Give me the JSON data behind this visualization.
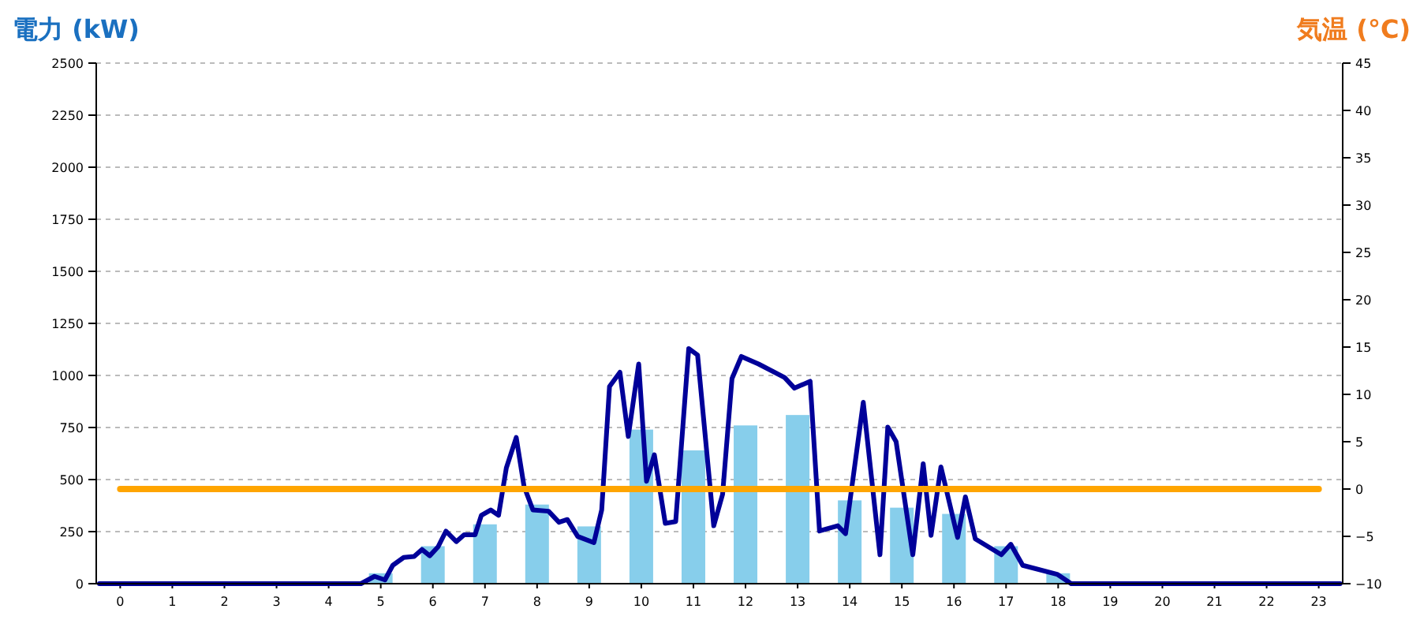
{
  "chart_data": {
    "type": "bar",
    "ylabel": "電力 (kW)",
    "y2label": "気温 (°C)",
    "x": [
      0,
      1,
      2,
      3,
      4,
      5,
      6,
      7,
      8,
      9,
      10,
      11,
      12,
      13,
      14,
      15,
      16,
      17,
      18,
      19,
      20,
      21,
      22,
      23
    ],
    "xlim": [
      -0.46,
      23.46
    ],
    "xticks": [
      0,
      1,
      2,
      3,
      4,
      5,
      6,
      7,
      8,
      9,
      10,
      11,
      12,
      13,
      14,
      15,
      16,
      17,
      18,
      19,
      20,
      21,
      22,
      23
    ],
    "series": [
      {
        "color": "#87ceeb",
        "values": [
          0,
          0,
          0,
          0,
          0,
          50,
          180,
          285,
          380,
          275,
          740,
          640,
          760,
          810,
          400,
          365,
          335,
          180,
          50,
          0,
          0,
          0,
          0,
          0
        ]
      },
      {
        "type": "line",
        "color": "#000099",
        "x": [
          -0.4,
          4.62,
          4.88,
          5.08,
          5.23,
          5.44,
          5.64,
          5.79,
          5.94,
          6.1,
          6.25,
          6.45,
          6.6,
          6.81,
          6.93,
          7.11,
          7.26,
          7.41,
          7.6,
          7.75,
          7.92,
          8.22,
          8.42,
          8.58,
          8.78,
          9.09,
          9.24,
          9.39,
          9.59,
          9.75,
          9.95,
          10.1,
          10.25,
          10.46,
          10.66,
          10.91,
          11.08,
          11.39,
          11.56,
          11.74,
          11.92,
          12.25,
          12.75,
          12.94,
          13.24,
          13.42,
          13.77,
          13.92,
          14.26,
          14.58,
          14.73,
          14.89,
          15.21,
          15.41,
          15.56,
          15.75,
          16.07,
          16.22,
          16.41,
          16.91,
          17.09,
          17.32,
          17.98,
          18.25,
          23.41
        ],
        "values": [
          0,
          0,
          35,
          18,
          88,
          126,
          131,
          164,
          134,
          177,
          252,
          202,
          235,
          235,
          328,
          354,
          328,
          556,
          702,
          467,
          354,
          348,
          295,
          308,
          227,
          197,
          354,
          947,
          1015,
          707,
          1055,
          492,
          619,
          290,
          298,
          1129,
          1098,
          278,
          429,
          985,
          1091,
          1055,
          990,
          939,
          972,
          253,
          278,
          240,
          871,
          139,
          752,
          682,
          139,
          576,
          232,
          561,
          222,
          417,
          215,
          139,
          189,
          88,
          45,
          0,
          0
        ]
      },
      {
        "type": "line",
        "color": "#ffa500",
        "axis": "y2",
        "values": [
          0,
          0,
          0,
          0,
          0,
          0,
          0,
          0,
          0,
          0,
          0,
          0,
          0,
          0,
          0,
          0,
          0,
          0,
          0,
          0,
          0,
          0,
          0,
          0
        ]
      }
    ],
    "ylim": [
      0,
      2500
    ],
    "yticks": [
      0,
      250,
      500,
      750,
      1000,
      1250,
      1500,
      1750,
      2000,
      2250,
      2500
    ],
    "y2lim": [
      -10,
      45
    ],
    "y2ticks": [
      -10,
      -5,
      0,
      5,
      10,
      15,
      20,
      25,
      30,
      35,
      40,
      45
    ],
    "grid": "y"
  }
}
